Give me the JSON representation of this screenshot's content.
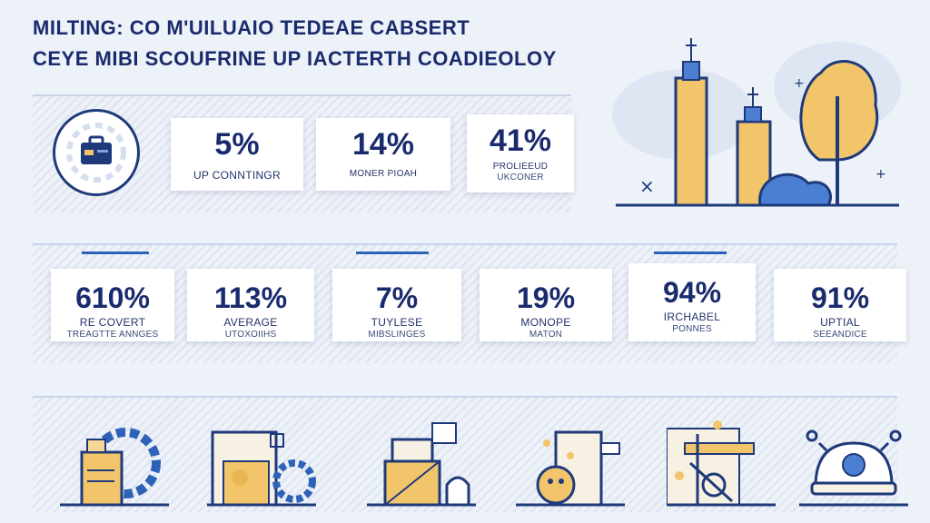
{
  "header": {
    "title_line1": "MILTING: CO M'UILUAIO TEDEAE CABSERT",
    "title_line2": "CEYE MIBI SCOUFRINE UP IACTERTH COADIEOLOY"
  },
  "top_stats": [
    {
      "value": "5%",
      "label": "UP CONNTINGR",
      "sublabel": ""
    },
    {
      "value": "14%",
      "label": "MONER PIOAH",
      "sublabel": ""
    },
    {
      "value": "41%",
      "label": "PROLIEEUD",
      "sublabel": "UKCONER"
    }
  ],
  "mid_stats": [
    {
      "value": "610%",
      "label": "RE COVERT",
      "sublabel": "TREAGTTE ANNGES"
    },
    {
      "value": "113%",
      "label": "AVERAGE",
      "sublabel": "UTOXOIIHS"
    },
    {
      "value": "7%",
      "label": "TUYLESE",
      "sublabel": "MIBSLINGES"
    },
    {
      "value": "19%",
      "label": "MONOPE",
      "sublabel": "MATON"
    },
    {
      "value": "94%",
      "label": "IRCHABEL",
      "sublabel": "PONNES"
    },
    {
      "value": "91%",
      "label": "UPTIAL",
      "sublabel": "SEEANDICE"
    }
  ],
  "icons": {
    "feature_icon": "briefcase-icon",
    "skyline": "city-skyline-icon",
    "bottom": [
      "gear-document-icon",
      "boxes-gear-icon",
      "stacked-crates-icon",
      "globe-package-icon",
      "signpost-icon",
      "robot-dome-icon"
    ]
  },
  "colors": {
    "navy": "#1a2b6d",
    "blue": "#2d62b8",
    "gold": "#f2c56b",
    "background": "#edf1f8"
  }
}
